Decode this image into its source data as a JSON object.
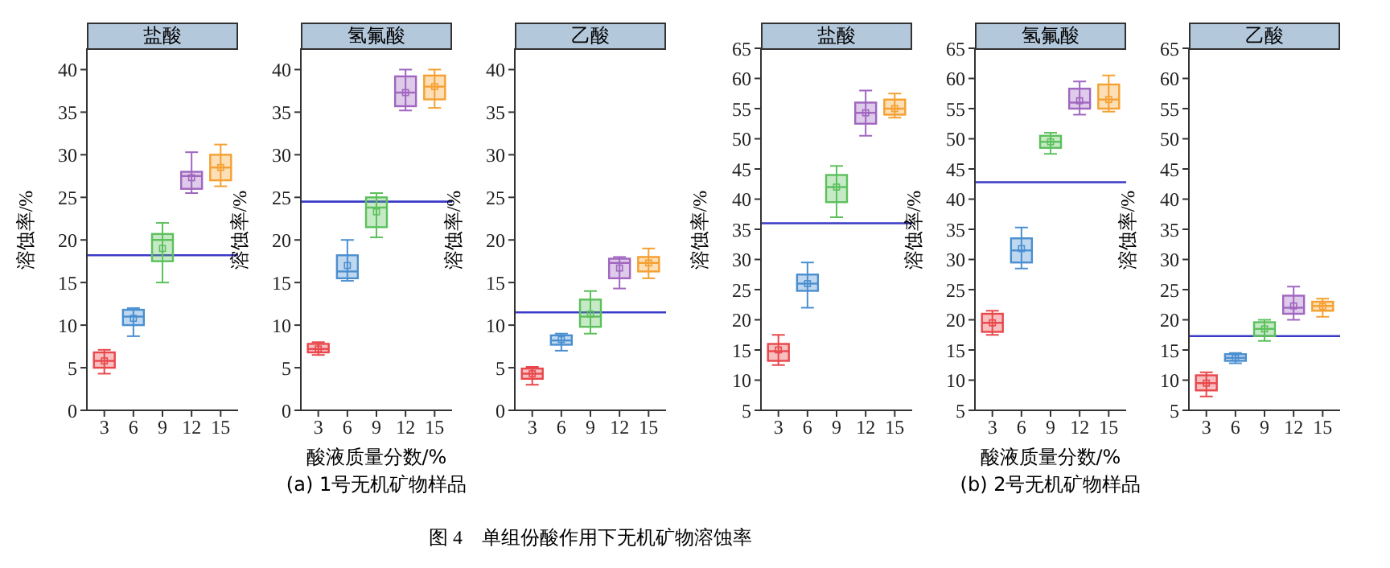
{
  "chart_data": [
    {
      "type": "box",
      "title": "盐酸",
      "ylabel": "溶蚀率/%",
      "categories": [
        "3",
        "6",
        "9",
        "12",
        "15"
      ],
      "colors": [
        "#e8474b",
        "#4a8fd0",
        "#5cc05c",
        "#a066c0",
        "#f5a030"
      ],
      "ylim": [
        0,
        42.5
      ],
      "yticks": [
        0,
        5,
        10,
        15,
        20,
        25,
        30,
        35,
        40
      ],
      "ref_lines": [
        {
          "axis": "y",
          "value": 18.2,
          "color": "#3a3ac8"
        }
      ],
      "boxes": [
        {
          "low": 4.3,
          "q1": 5,
          "median": 5.8,
          "q3": 6.8,
          "high": 7.1,
          "mean": 5.8
        },
        {
          "low": 8.7,
          "q1": 10,
          "median": 11,
          "q3": 11.8,
          "high": 12,
          "mean": 10.8
        },
        {
          "low": 15,
          "q1": 17.5,
          "median": 20,
          "q3": 20.7,
          "high": 22,
          "mean": 19
        },
        {
          "low": 25.5,
          "q1": 26,
          "median": 27.5,
          "q3": 28,
          "high": 30.3,
          "mean": 27.3
        },
        {
          "low": 26.3,
          "q1": 27,
          "median": 28.5,
          "q3": 30,
          "high": 31.2,
          "mean": 28.5
        }
      ]
    },
    {
      "type": "box",
      "title": "氢氟酸",
      "ylabel": "溶蚀率/%",
      "xlabel": "酸液质量分数/%",
      "annotations": [
        "(a) 1号无机矿物样品"
      ],
      "categories": [
        "3",
        "6",
        "9",
        "12",
        "15"
      ],
      "colors": [
        "#e8474b",
        "#4a8fd0",
        "#5cc05c",
        "#a066c0",
        "#f5a030"
      ],
      "ylim": [
        0,
        42.5
      ],
      "yticks": [
        0,
        5,
        10,
        15,
        20,
        25,
        30,
        35,
        40
      ],
      "ref_lines": [
        {
          "axis": "y",
          "value": 24.5,
          "color": "#3a3ac8"
        }
      ],
      "boxes": [
        {
          "low": 6.5,
          "q1": 6.8,
          "median": 7.2,
          "q3": 7.8,
          "high": 8,
          "mean": 7.2
        },
        {
          "low": 15.2,
          "q1": 15.5,
          "median": 16.3,
          "q3": 18.2,
          "high": 20,
          "mean": 17
        },
        {
          "low": 20.3,
          "q1": 21.5,
          "median": 23.8,
          "q3": 25,
          "high": 25.5,
          "mean": 23.3
        },
        {
          "low": 35.2,
          "q1": 35.7,
          "median": 37.3,
          "q3": 39.2,
          "high": 40,
          "mean": 37.3
        },
        {
          "low": 35.5,
          "q1": 36.5,
          "median": 38,
          "q3": 39.3,
          "high": 40,
          "mean": 38
        }
      ]
    },
    {
      "type": "box",
      "title": "乙酸",
      "ylabel": "溶蚀率/%",
      "annotations": [
        "图 4　单组份酸作用下无机矿物溶蚀率"
      ],
      "categories": [
        "3",
        "6",
        "9",
        "12",
        "15"
      ],
      "colors": [
        "#e8474b",
        "#4a8fd0",
        "#5cc05c",
        "#a066c0",
        "#f5a030"
      ],
      "ylim": [
        0,
        42.5
      ],
      "yticks": [
        0,
        5,
        10,
        15,
        20,
        25,
        30,
        35,
        40
      ],
      "ref_lines": [
        {
          "axis": "y",
          "value": 11.5,
          "color": "#3a3ac8"
        }
      ],
      "boxes": [
        {
          "low": 3,
          "q1": 3.7,
          "median": 4.3,
          "q3": 4.9,
          "high": 5.1,
          "mean": 4.3
        },
        {
          "low": 7,
          "q1": 7.7,
          "median": 8.2,
          "q3": 8.8,
          "high": 9,
          "mean": 8.3
        },
        {
          "low": 9,
          "q1": 9.8,
          "median": 11,
          "q3": 13,
          "high": 14,
          "mean": 11.3
        },
        {
          "low": 14.3,
          "q1": 15.5,
          "median": 17.3,
          "q3": 17.8,
          "high": 18,
          "mean": 16.7
        },
        {
          "low": 15.5,
          "q1": 16.3,
          "median": 17.3,
          "q3": 18,
          "high": 19,
          "mean": 17.3
        }
      ]
    },
    {
      "type": "box",
      "title": "盐酸",
      "ylabel": "溶蚀率/%",
      "categories": [
        "3",
        "6",
        "9",
        "12",
        "15"
      ],
      "colors": [
        "#e8474b",
        "#4a8fd0",
        "#5cc05c",
        "#a066c0",
        "#f5a030"
      ],
      "ylim": [
        5,
        65
      ],
      "yticks": [
        5,
        10,
        15,
        20,
        25,
        30,
        35,
        40,
        45,
        50,
        55,
        60,
        65
      ],
      "ref_lines": [
        {
          "axis": "y",
          "value": 36,
          "color": "#3a3ac8"
        }
      ],
      "boxes": [
        {
          "low": 12.5,
          "q1": 13.2,
          "median": 14.8,
          "q3": 16,
          "high": 17.5,
          "mean": 15
        },
        {
          "low": 22,
          "q1": 24.8,
          "median": 26,
          "q3": 27.5,
          "high": 29.5,
          "mean": 26
        },
        {
          "low": 37,
          "q1": 39.5,
          "median": 42,
          "q3": 44,
          "high": 45.5,
          "mean": 42
        },
        {
          "low": 50.5,
          "q1": 52.5,
          "median": 54.3,
          "q3": 56,
          "high": 58,
          "mean": 54.3
        },
        {
          "low": 53.5,
          "q1": 54,
          "median": 55,
          "q3": 56.5,
          "high": 57.5,
          "mean": 55
        }
      ]
    },
    {
      "type": "box",
      "title": "氢氟酸",
      "ylabel": "溶蚀率/%",
      "xlabel": "酸液质量分数/%",
      "annotations": [
        "(b) 2号无机矿物样品"
      ],
      "categories": [
        "3",
        "6",
        "9",
        "12",
        "15"
      ],
      "colors": [
        "#e8474b",
        "#4a8fd0",
        "#5cc05c",
        "#a066c0",
        "#f5a030"
      ],
      "ylim": [
        5,
        65
      ],
      "yticks": [
        5,
        10,
        15,
        20,
        25,
        30,
        35,
        40,
        45,
        50,
        55,
        60,
        65
      ],
      "ref_lines": [
        {
          "axis": "y",
          "value": 42.8,
          "color": "#3a3ac8"
        }
      ],
      "boxes": [
        {
          "low": 17.5,
          "q1": 18,
          "median": 19.5,
          "q3": 21,
          "high": 21.5,
          "mean": 19.5
        },
        {
          "low": 28.5,
          "q1": 29.5,
          "median": 31.5,
          "q3": 33.5,
          "high": 35.3,
          "mean": 31.8
        },
        {
          "low": 47.5,
          "q1": 48.5,
          "median": 49.5,
          "q3": 50.5,
          "high": 51,
          "mean": 49.5
        },
        {
          "low": 54,
          "q1": 55,
          "median": 56,
          "q3": 58.3,
          "high": 59.5,
          "mean": 56.3
        },
        {
          "low": 54.5,
          "q1": 55,
          "median": 56.5,
          "q3": 59,
          "high": 60.5,
          "mean": 56.5
        }
      ]
    },
    {
      "type": "box",
      "title": "乙酸",
      "ylabel": "溶蚀率/%",
      "categories": [
        "3",
        "6",
        "9",
        "12",
        "15"
      ],
      "colors": [
        "#e8474b",
        "#4a8fd0",
        "#5cc05c",
        "#a066c0",
        "#f5a030"
      ],
      "ylim": [
        5,
        65
      ],
      "yticks": [
        5,
        10,
        15,
        20,
        25,
        30,
        35,
        40,
        45,
        50,
        55,
        60,
        65
      ],
      "ref_lines": [
        {
          "axis": "y",
          "value": 17.3,
          "color": "#3a3ac8"
        }
      ],
      "boxes": [
        {
          "low": 7.3,
          "q1": 8.3,
          "median": 9.5,
          "q3": 10.8,
          "high": 11.3,
          "mean": 9.5
        },
        {
          "low": 12.8,
          "q1": 13.2,
          "median": 13.7,
          "q3": 14.3,
          "high": 14.5,
          "mean": 13.7
        },
        {
          "low": 16.5,
          "q1": 17.3,
          "median": 18.5,
          "q3": 19.6,
          "high": 20,
          "mean": 18.5
        },
        {
          "low": 20,
          "q1": 21,
          "median": 22,
          "q3": 24,
          "high": 25.5,
          "mean": 22.3
        },
        {
          "low": 20.5,
          "q1": 21.5,
          "median": 22.3,
          "q3": 23,
          "high": 23.5,
          "mean": 22.2
        }
      ]
    }
  ]
}
